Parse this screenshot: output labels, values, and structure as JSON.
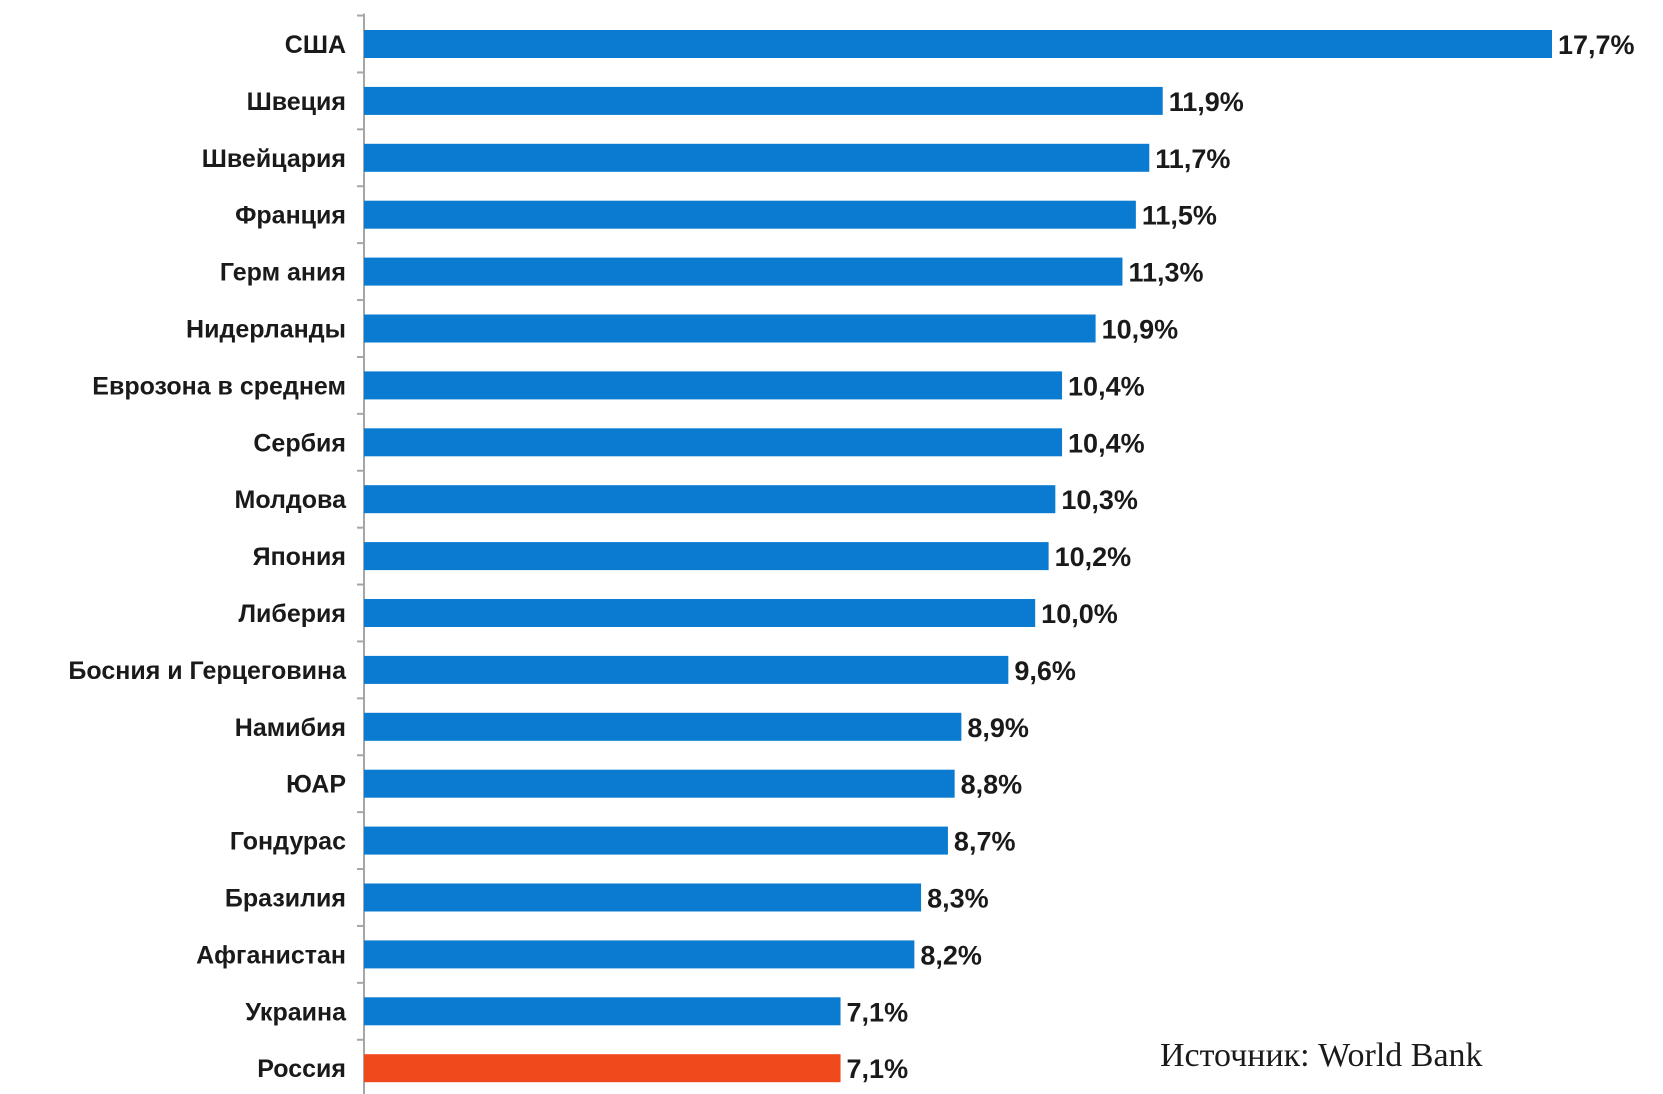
{
  "chart_data": {
    "type": "bar",
    "orientation": "horizontal",
    "title": "",
    "xlabel": "",
    "ylabel": "",
    "grid": false,
    "xlim": [
      0,
      17.7
    ],
    "categories": [
      "США",
      "Швеция",
      "Швейцария",
      "Франция",
      "Герм ания",
      "Нидерланды",
      "Еврозона в среднем",
      "Сербия",
      "Молдова",
      "Япония",
      "Либерия",
      "Босния и Герцеговина",
      "Намибия",
      "ЮАР",
      "Гондурас",
      "Бразилия",
      "Афганистан",
      "Украина",
      "Россия"
    ],
    "values": [
      17.7,
      11.9,
      11.7,
      11.5,
      11.3,
      10.9,
      10.4,
      10.4,
      10.3,
      10.2,
      10.0,
      9.6,
      8.9,
      8.8,
      8.7,
      8.3,
      8.2,
      7.1,
      7.1
    ],
    "value_labels": [
      "17,7%",
      "11,9%",
      "11,7%",
      "11,5%",
      "11,3%",
      "10,9%",
      "10,4%",
      "10,4%",
      "10,3%",
      "10,2%",
      "10,0%",
      "9,6%",
      "8,9%",
      "8,8%",
      "8,7%",
      "8,3%",
      "8,2%",
      "7,1%",
      "7,1%"
    ],
    "colors": {
      "default": "#0a7bd0",
      "highlight": "#f04a1c",
      "axis": "#a6a6a6"
    },
    "highlight_category": "Россия",
    "source": "Источник: World Bank"
  }
}
